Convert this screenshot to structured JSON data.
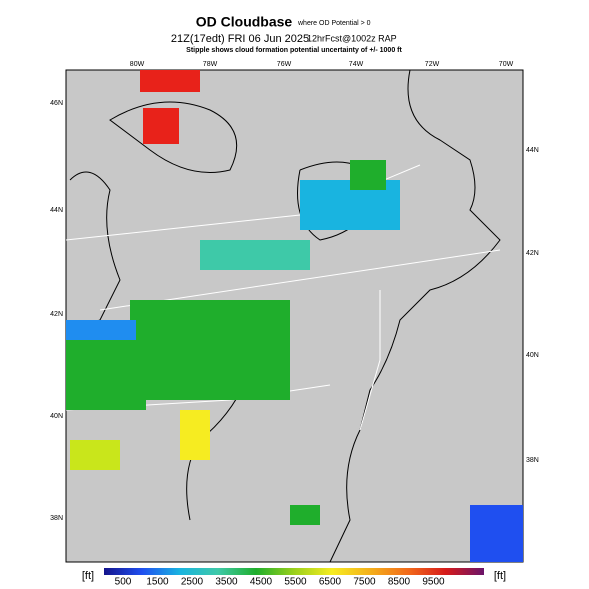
{
  "header": {
    "title": "OD Cloudbase",
    "title_note": "where OD Potential > 0",
    "valid_time": "21Z(17edt) FRI 06 Jun 2025",
    "forecast": "12hrFcst@1002z RAP",
    "subtitle": "Stipple shows cloud formation potential uncertainty of +/- 1000 ft"
  },
  "map": {
    "lon_labels": [
      "80W",
      "78W",
      "76W",
      "74W",
      "72W",
      "70W"
    ],
    "lat_labels_left": [
      "46N",
      "44N",
      "42N",
      "40N",
      "38N"
    ],
    "lat_labels_right": [
      "44N",
      "42N",
      "40N",
      "38N"
    ]
  },
  "colorbar": {
    "unit_left": "[ft]",
    "unit_right": "[ft]",
    "labels": [
      500,
      1500,
      2500,
      3500,
      4500,
      5500,
      6500,
      7500,
      8500,
      9500
    ]
  }
}
